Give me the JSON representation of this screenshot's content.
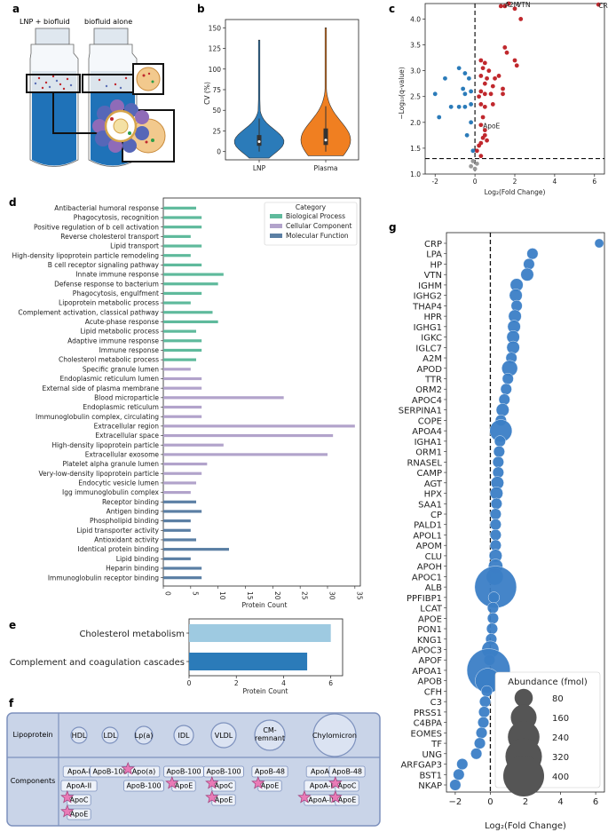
{
  "panels": {
    "a": {
      "label": "a",
      "tube1": "LNP + biofluid",
      "tube2": "biofluid alone"
    },
    "b": {
      "label": "b"
    },
    "c": {
      "label": "c"
    },
    "d": {
      "label": "d"
    },
    "e": {
      "label": "e"
    },
    "f": {
      "label": "f",
      "row1_label": "Lipoprotein",
      "row2_label": "Components",
      "lipoproteins": [
        {
          "name": "HDL",
          "components": [
            {
              "name": "ApoA-I",
              "star": false
            },
            {
              "name": "ApoA-II",
              "star": false
            },
            {
              "name": "ApoC",
              "star": true
            },
            {
              "name": "ApoE",
              "star": true
            }
          ]
        },
        {
          "name": "LDL",
          "components": [
            {
              "name": "ApoB-100",
              "star": false
            }
          ]
        },
        {
          "name": "Lp(a)",
          "components": [
            {
              "name": "Apo(a)",
              "star": true
            },
            {
              "name": "ApoB-100",
              "star": false
            }
          ]
        },
        {
          "name": "IDL",
          "components": [
            {
              "name": "ApoB-100",
              "star": false
            },
            {
              "name": "ApoE",
              "star": true
            }
          ]
        },
        {
          "name": "VLDL",
          "components": [
            {
              "name": "ApoB-100",
              "star": false
            },
            {
              "name": "ApoC",
              "star": true
            },
            {
              "name": "ApoE",
              "star": true
            }
          ]
        },
        {
          "name": "CM-remnant",
          "components": [
            {
              "name": "ApoB-48",
              "star": false
            },
            {
              "name": "ApoE",
              "star": true
            }
          ]
        },
        {
          "name": "Chylomicron",
          "components": [
            {
              "name": "ApoA-I",
              "star": false
            },
            {
              "name": "ApoA-II",
              "star": false
            },
            {
              "name": "ApoA-IV",
              "star": true
            },
            {
              "name": "ApoB-48",
              "star": false
            },
            {
              "name": "ApoC",
              "star": true
            },
            {
              "name": "ApoE",
              "star": true
            }
          ]
        }
      ]
    },
    "g": {
      "label": "g"
    }
  },
  "chart_data": [
    {
      "id": "b",
      "type": "violin",
      "ylabel": "CV (%)",
      "categories": [
        "LNP",
        "Plasma"
      ],
      "colors": [
        "#2b7bb9",
        "#f07f21"
      ],
      "ylim": [
        -10,
        160
      ],
      "yticks": [
        0,
        25,
        50,
        75,
        100,
        125,
        150
      ],
      "series": [
        {
          "name": "LNP",
          "median": 12,
          "q1": 7,
          "q3": 20,
          "whisker_low": 0,
          "whisker_high": 40,
          "min": -8,
          "max": 135
        },
        {
          "name": "Plasma",
          "median": 14,
          "q1": 8,
          "q3": 28,
          "whisker_low": 0,
          "whisker_high": 55,
          "min": -5,
          "max": 150
        }
      ]
    },
    {
      "id": "c",
      "type": "scatter",
      "xlabel": "Log₂(Fold Change)",
      "ylabel": "−Log₁₀(q-value)",
      "xlim": [
        -2.5,
        6.5
      ],
      "ylim": [
        1.0,
        4.3
      ],
      "xticks": [
        -2,
        0,
        2,
        4,
        6
      ],
      "yticks": [
        1.0,
        1.5,
        2.0,
        2.5,
        3.0,
        3.5,
        4.0
      ],
      "threshold_y": 1.3,
      "threshold_x": 0,
      "annotations": [
        {
          "text": "A2M",
          "x": 1.5,
          "y": 4.3
        },
        {
          "text": "VTN",
          "x": 2.1,
          "y": 4.3
        },
        {
          "text": "CR",
          "x": 6.2,
          "y": 4.28
        },
        {
          "text": "ApoE",
          "x": 0.4,
          "y": 1.95
        }
      ],
      "series": [
        {
          "name": "up",
          "color": "#c0282d",
          "points": [
            [
              1.3,
              4.25
            ],
            [
              1.5,
              4.25
            ],
            [
              1.7,
              4.3
            ],
            [
              2.0,
              4.2
            ],
            [
              2.3,
              4.0
            ],
            [
              6.2,
              4.28
            ],
            [
              1.5,
              3.45
            ],
            [
              1.6,
              3.35
            ],
            [
              2.1,
              3.1
            ],
            [
              2.0,
              3.2
            ],
            [
              0.3,
              3.2
            ],
            [
              0.5,
              3.15
            ],
            [
              0.4,
              3.05
            ],
            [
              0.7,
              3.0
            ],
            [
              0.3,
              2.9
            ],
            [
              0.6,
              2.85
            ],
            [
              1.0,
              2.85
            ],
            [
              1.2,
              2.9
            ],
            [
              0.5,
              2.75
            ],
            [
              0.9,
              2.7
            ],
            [
              1.4,
              2.65
            ],
            [
              0.3,
              2.6
            ],
            [
              0.5,
              2.55
            ],
            [
              0.8,
              2.55
            ],
            [
              1.4,
              2.55
            ],
            [
              0.2,
              2.5
            ],
            [
              0.3,
              2.35
            ],
            [
              0.5,
              2.3
            ],
            [
              0.9,
              2.35
            ],
            [
              0.4,
              2.1
            ],
            [
              0.3,
              1.95
            ],
            [
              0.5,
              1.85
            ],
            [
              0.4,
              1.7
            ],
            [
              0.3,
              1.6
            ],
            [
              0.2,
              1.55
            ],
            [
              0.5,
              1.75
            ],
            [
              0.6,
              1.65
            ],
            [
              0.1,
              1.45
            ],
            [
              0.3,
              1.35
            ]
          ]
        },
        {
          "name": "down",
          "color": "#2b7bb9",
          "points": [
            [
              -1.5,
              2.85
            ],
            [
              -0.8,
              3.05
            ],
            [
              -0.5,
              2.95
            ],
            [
              -0.3,
              2.85
            ],
            [
              -0.6,
              2.65
            ],
            [
              -0.2,
              2.6
            ],
            [
              -2.0,
              2.55
            ],
            [
              -0.5,
              2.55
            ],
            [
              -0.2,
              2.35
            ],
            [
              -0.5,
              2.3
            ],
            [
              -0.8,
              2.3
            ],
            [
              -1.2,
              2.3
            ],
            [
              -1.8,
              2.1
            ],
            [
              -0.2,
              2.0
            ],
            [
              -0.4,
              1.75
            ],
            [
              -0.1,
              1.45
            ]
          ]
        },
        {
          "name": "ns",
          "color": "#999999",
          "points": [
            [
              -0.1,
              1.25
            ],
            [
              0.1,
              1.2
            ],
            [
              -0.2,
              1.15
            ],
            [
              0.0,
              1.1
            ]
          ]
        }
      ]
    },
    {
      "id": "d",
      "type": "bar",
      "orientation": "horizontal",
      "xlabel": "Protein Count",
      "xlim": [
        0,
        36
      ],
      "xticks": [
        0,
        5,
        10,
        15,
        20,
        25,
        30,
        35
      ],
      "legend_title": "Category",
      "legend_position": "top-right",
      "legend": [
        {
          "name": "Biological Process",
          "color": "#5fba9c"
        },
        {
          "name": "Cellular Component",
          "color": "#b2a3cb"
        },
        {
          "name": "Molecular Function",
          "color": "#5b7fa4"
        }
      ],
      "categories": [
        "Antibacterial humoral response",
        "Phagocytosis, recognition",
        "Positive regulation of b cell activation",
        "Reverse cholesterol transport",
        "Lipid transport",
        "High-density lipoprotein particle remodeling",
        "B cell receptor signaling pathway",
        "Innate immune response",
        "Defense response to bacterium",
        "Phagocytosis, engulfment",
        "Lipoprotein metabolic process",
        "Complement activation, classical pathway",
        "Acute-phase response",
        "Lipid metabolic process",
        "Adaptive immune response",
        "Immune response",
        "Cholesterol metabolic process",
        "Specific granule lumen",
        "Endoplasmic reticulum lumen",
        "External side of plasma membrane",
        "Blood microparticle",
        "Endoplasmic reticulum",
        "Immunoglobulin complex, circulating",
        "Extracellular region",
        "Extracellular space",
        "High-density lipoprotein particle",
        "Extracellular exosome",
        "Platelet alpha granule lumen",
        "Very-low-density lipoprotein particle",
        "Endocytic vesicle lumen",
        "Igg immunoglobulin complex",
        "Receptor binding",
        "Antigen binding",
        "Phospholipid binding",
        "Lipid transporter activity",
        "Antioxidant activity",
        "Identical protein binding",
        "Lipid binding",
        "Heparin binding",
        "Immunoglobulin receptor binding"
      ],
      "values": [
        6,
        7,
        7,
        5,
        7,
        5,
        7,
        11,
        10,
        7,
        5,
        9,
        10,
        6,
        7,
        7,
        6,
        5,
        7,
        7,
        22,
        7,
        7,
        35,
        31,
        11,
        30,
        8,
        7,
        6,
        5,
        6,
        7,
        5,
        5,
        6,
        12,
        5,
        7,
        7
      ],
      "category_index": [
        0,
        0,
        0,
        0,
        0,
        0,
        0,
        0,
        0,
        0,
        0,
        0,
        0,
        0,
        0,
        0,
        0,
        1,
        1,
        1,
        1,
        1,
        1,
        1,
        1,
        1,
        1,
        1,
        1,
        1,
        1,
        2,
        2,
        2,
        2,
        2,
        2,
        2,
        2,
        2
      ]
    },
    {
      "id": "e",
      "type": "bar",
      "orientation": "horizontal",
      "xlabel": "Protein Count",
      "xlim": [
        0,
        6.5
      ],
      "xticks": [
        0,
        2,
        4,
        6
      ],
      "categories": [
        "Cholesterol metabolism",
        "Complement and coagulation cascades"
      ],
      "values": [
        6,
        5
      ],
      "colors": [
        "#9ecae1",
        "#2b7bb9"
      ]
    },
    {
      "id": "g",
      "type": "scatter",
      "xlabel": "Log₂(Fold Change)",
      "xlim": [
        -2.5,
        6.5
      ],
      "xticks": [
        -2,
        0,
        2,
        4,
        6
      ],
      "legend_title": "Abundance (fmol)",
      "legend_position": "bottom-right",
      "legend_sizes": [
        80,
        160,
        240,
        320,
        400
      ],
      "color": "#3b7ec6",
      "categories": [
        "CRP",
        "LPA",
        "HP",
        "VTN",
        "IGHM",
        "IGHG2",
        "THAP4",
        "HPR",
        "IGHG1",
        "IGKC",
        "IGLC7",
        "A2M",
        "APOD",
        "TTR",
        "ORM2",
        "APOC4",
        "SERPINA1",
        "COPE",
        "APOA4",
        "IGHA1",
        "ORM1",
        "RNASEL",
        "CAMP",
        "AGT",
        "HPX",
        "SAA1",
        "CP",
        "PALD1",
        "APOL1",
        "APOM",
        "CLU",
        "APOH",
        "APOC1",
        "ALB",
        "PPFIBP1",
        "LCAT",
        "APOE",
        "PON1",
        "KNG1",
        "APOC3",
        "APOF",
        "APOA1",
        "APOB",
        "CFH",
        "C3",
        "PRSS1",
        "C4BPA",
        "EOMES",
        "TF",
        "UNG",
        "ARFGAP3",
        "BST1",
        "NKAP"
      ],
      "values": [
        6.2,
        2.4,
        2.2,
        2.1,
        1.5,
        1.45,
        1.5,
        1.4,
        1.35,
        1.3,
        1.3,
        1.2,
        1.1,
        1.0,
        0.9,
        0.8,
        0.7,
        0.6,
        0.6,
        0.55,
        0.5,
        0.45,
        0.45,
        0.4,
        0.35,
        0.35,
        0.3,
        0.3,
        0.3,
        0.3,
        0.3,
        0.3,
        0.25,
        0.3,
        0.2,
        0.15,
        0.15,
        0.1,
        0.05,
        0.0,
        -0.05,
        -0.1,
        -0.15,
        -0.2,
        -0.3,
        -0.35,
        -0.4,
        -0.5,
        -0.6,
        -0.8,
        -1.6,
        -1.8,
        -2.0
      ],
      "abundance": [
        20,
        30,
        30,
        40,
        40,
        40,
        30,
        40,
        40,
        40,
        40,
        30,
        60,
        30,
        30,
        30,
        40,
        30,
        120,
        30,
        30,
        30,
        30,
        40,
        40,
        30,
        30,
        30,
        30,
        30,
        40,
        50,
        70,
        420,
        30,
        30,
        30,
        30,
        30,
        70,
        30,
        450,
        150,
        30,
        30,
        30,
        30,
        30,
        30,
        30,
        30,
        30,
        30
      ]
    }
  ]
}
